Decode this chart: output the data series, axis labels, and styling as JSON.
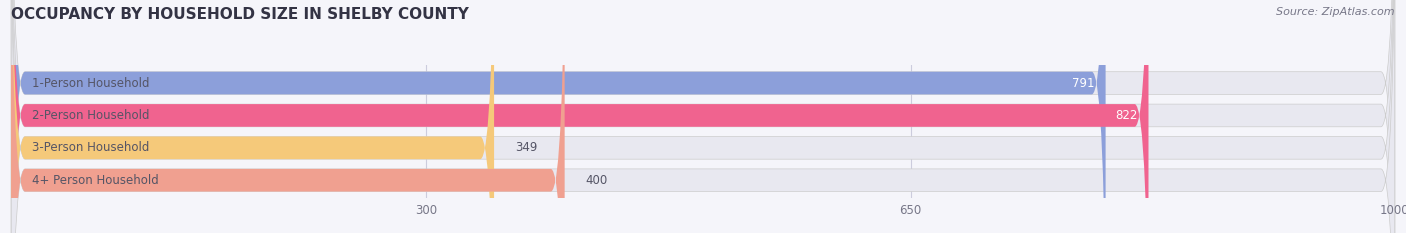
{
  "title": "OCCUPANCY BY HOUSEHOLD SIZE IN SHELBY COUNTY",
  "source": "Source: ZipAtlas.com",
  "categories": [
    "1-Person Household",
    "2-Person Household",
    "3-Person Household",
    "4+ Person Household"
  ],
  "values": [
    791,
    822,
    349,
    400
  ],
  "bar_colors": [
    "#8c9fda",
    "#f0638f",
    "#f5c97a",
    "#f0a090"
  ],
  "xlim": [
    0,
    1000
  ],
  "xticks": [
    300,
    650,
    1000
  ],
  "background_color": "#f5f5fa",
  "bar_background_color": "#e8e8f0",
  "title_fontsize": 11,
  "source_fontsize": 8,
  "label_fontsize": 8.5,
  "value_fontsize": 8.5,
  "tick_fontsize": 8.5
}
